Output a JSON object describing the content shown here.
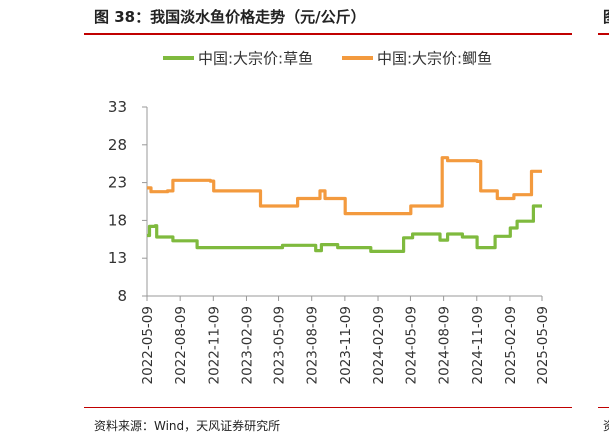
{
  "header": {
    "title": "图 38：我国淡水鱼价格走势（元/公斤）",
    "side_mark": "图"
  },
  "footer": {
    "source": "资料来源：Wind，天风证券研究所",
    "side_source": "资"
  },
  "colors": {
    "accent_rule": "#c00000",
    "axis": "#999999"
  },
  "chart_data": {
    "type": "line",
    "title": "",
    "xlabel": "",
    "ylabel": "",
    "ylim": [
      8,
      33
    ],
    "y_ticks": [
      8,
      13,
      18,
      23,
      28,
      33
    ],
    "x_ticks": [
      "2022-05-09",
      "2022-08-09",
      "2022-11-09",
      "2023-02-09",
      "2023-05-09",
      "2023-08-09",
      "2023-11-09",
      "2024-02-09",
      "2024-05-09",
      "2024-08-09",
      "2024-11-09",
      "2025-02-09",
      "2025-05-09"
    ],
    "grid": false,
    "legend_position": "top",
    "series": [
      {
        "name": "中国:大宗价:草鱼",
        "color": "#7fba3e",
        "points": [
          [
            "2022-05-09",
            16.0
          ],
          [
            "2022-05-16",
            17.2
          ],
          [
            "2022-06-01",
            17.3
          ],
          [
            "2022-06-05",
            15.8
          ],
          [
            "2022-07-20",
            15.3
          ],
          [
            "2022-09-25",
            14.4
          ],
          [
            "2023-05-20",
            14.7
          ],
          [
            "2023-08-20",
            14.0
          ],
          [
            "2023-09-05",
            14.8
          ],
          [
            "2023-10-20",
            14.4
          ],
          [
            "2024-01-20",
            13.9
          ],
          [
            "2024-04-20",
            15.7
          ],
          [
            "2024-05-15",
            16.2
          ],
          [
            "2024-07-30",
            15.4
          ],
          [
            "2024-08-20",
            16.2
          ],
          [
            "2024-09-30",
            15.8
          ],
          [
            "2024-11-10",
            14.4
          ],
          [
            "2024-12-30",
            15.9
          ],
          [
            "2025-02-10",
            17.0
          ],
          [
            "2025-03-01",
            17.9
          ],
          [
            "2025-04-15",
            19.9
          ],
          [
            "2025-05-09",
            19.9
          ]
        ]
      },
      {
        "name": "中国:大宗价:鲫鱼",
        "color": "#f39a3e",
        "points": [
          [
            "2022-05-09",
            22.3
          ],
          [
            "2022-05-20",
            21.8
          ],
          [
            "2022-07-05",
            21.9
          ],
          [
            "2022-07-20",
            23.3
          ],
          [
            "2022-11-01",
            23.2
          ],
          [
            "2022-11-10",
            21.9
          ],
          [
            "2023-03-01",
            21.9
          ],
          [
            "2023-03-20",
            19.9
          ],
          [
            "2023-06-10",
            19.9
          ],
          [
            "2023-07-01",
            20.9
          ],
          [
            "2023-08-15",
            20.9
          ],
          [
            "2023-09-01",
            21.9
          ],
          [
            "2023-09-15",
            20.9
          ],
          [
            "2023-11-01",
            20.9
          ],
          [
            "2023-11-10",
            18.9
          ],
          [
            "2024-04-30",
            18.9
          ],
          [
            "2024-05-10",
            19.9
          ],
          [
            "2024-07-25",
            19.9
          ],
          [
            "2024-08-05",
            26.3
          ],
          [
            "2024-08-20",
            25.9
          ],
          [
            "2024-11-10",
            25.8
          ],
          [
            "2024-11-20",
            21.9
          ],
          [
            "2024-12-25",
            21.9
          ],
          [
            "2025-01-05",
            20.9
          ],
          [
            "2025-02-10",
            20.9
          ],
          [
            "2025-02-20",
            21.4
          ],
          [
            "2025-04-01",
            21.4
          ],
          [
            "2025-04-10",
            24.5
          ],
          [
            "2025-05-09",
            24.5
          ]
        ]
      }
    ]
  }
}
